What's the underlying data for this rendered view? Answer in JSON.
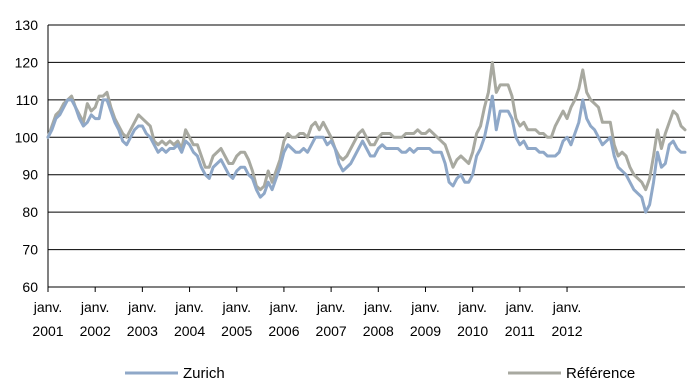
{
  "chart_data": {
    "type": "line",
    "title": "",
    "xlabel": "",
    "ylabel": "",
    "ylim": [
      60,
      130
    ],
    "yticks": [
      60,
      70,
      80,
      90,
      100,
      110,
      120,
      130
    ],
    "grid": "horizontal",
    "legend_position": "bottom",
    "x_start": "2001-01",
    "x_tick_labels": [
      {
        "month": "janv.",
        "year": "2001"
      },
      {
        "month": "janv.",
        "year": "2002"
      },
      {
        "month": "janv.",
        "year": "2003"
      },
      {
        "month": "janv.",
        "year": "2004"
      },
      {
        "month": "janv.",
        "year": "2005"
      },
      {
        "month": "janv.",
        "year": "2006"
      },
      {
        "month": "janv.",
        "year": "2007"
      },
      {
        "month": "janv.",
        "year": "2008"
      },
      {
        "month": "janv.",
        "year": "2009"
      },
      {
        "month": "janv.",
        "year": "2010"
      },
      {
        "month": "janv.",
        "year": "2011"
      },
      {
        "month": "janv.",
        "year": "2012"
      }
    ],
    "series": [
      {
        "name": "Zurich",
        "color": "#8fa8c8",
        "values": [
          100,
          102,
          105,
          106,
          108,
          110,
          110,
          108,
          105,
          103,
          104,
          106,
          105,
          105,
          110,
          110,
          107,
          104,
          102,
          99,
          98,
          100,
          102,
          103,
          103,
          101,
          100,
          98,
          96,
          97,
          96,
          97,
          97,
          98,
          96,
          99,
          98,
          96,
          95,
          92,
          90,
          89,
          92,
          93,
          94,
          92,
          90,
          89,
          91,
          92,
          92,
          90,
          89,
          86,
          84,
          85,
          88,
          86,
          89,
          92,
          96,
          98,
          97,
          96,
          96,
          97,
          96,
          98,
          100,
          100,
          100,
          98,
          99,
          97,
          93,
          91,
          92,
          93,
          95,
          97,
          99,
          97,
          95,
          95,
          97,
          98,
          97,
          97,
          97,
          97,
          96,
          96,
          97,
          96,
          97,
          97,
          97,
          97,
          96,
          96,
          96,
          93,
          88,
          87,
          89,
          90,
          88,
          88,
          90,
          95,
          97,
          100,
          105,
          111,
          102,
          107,
          107,
          107,
          105,
          100,
          98,
          99,
          97,
          97,
          97,
          96,
          96,
          95,
          95,
          95,
          96,
          99,
          100,
          98,
          101,
          104,
          110,
          105,
          103,
          102,
          100,
          98,
          99,
          100,
          95,
          92,
          91,
          90,
          88,
          86,
          85,
          84,
          80,
          82,
          88,
          96,
          92,
          93,
          98,
          99,
          97,
          96,
          96
        ],
        "line_width": 3
      },
      {
        "name": "Référence",
        "color": "#a8a9a0",
        "values": [
          100,
          103,
          106,
          107,
          109,
          110,
          111,
          108,
          106,
          104,
          109,
          107,
          108,
          111,
          111,
          112,
          108,
          105,
          103,
          101,
          100,
          102,
          104,
          106,
          105,
          104,
          103,
          99,
          98,
          99,
          98,
          99,
          98,
          99,
          97,
          102,
          100,
          98,
          98,
          95,
          92,
          92,
          95,
          96,
          97,
          95,
          93,
          93,
          95,
          96,
          96,
          94,
          91,
          87,
          86,
          87,
          91,
          88,
          91,
          94,
          99,
          101,
          100,
          100,
          101,
          101,
          100,
          103,
          104,
          102,
          104,
          102,
          100,
          97,
          95,
          94,
          95,
          97,
          99,
          101,
          102,
          100,
          98,
          98,
          100,
          101,
          101,
          101,
          100,
          100,
          100,
          101,
          101,
          101,
          102,
          101,
          101,
          102,
          101,
          100,
          99,
          98,
          95,
          92,
          94,
          95,
          94,
          93,
          96,
          101,
          103,
          108,
          112,
          120,
          112,
          114,
          114,
          114,
          111,
          105,
          103,
          104,
          102,
          102,
          102,
          101,
          101,
          100,
          100,
          103,
          105,
          107,
          105,
          108,
          110,
          113,
          118,
          112,
          110,
          109,
          108,
          104,
          104,
          104,
          98,
          95,
          96,
          95,
          92,
          90,
          89,
          88,
          86,
          89,
          95,
          102,
          97,
          101,
          104,
          107,
          106,
          103,
          102
        ],
        "line_width": 3
      }
    ]
  }
}
